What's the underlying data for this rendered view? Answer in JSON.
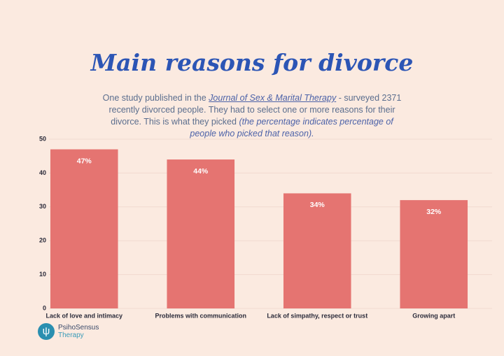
{
  "chart_data": {
    "type": "bar",
    "title": "Main reasons for divorce",
    "subtitle": [
      "One study published in the",
      "Journal of Sex & Marital Therapy",
      "- surveyed 2371 recently divorced people. They had to select one or more reasons for their divorce. This is what they picked",
      "(the percentage indicates percentage of people who picked that reason)."
    ],
    "categories": [
      "Lack of love and intimacy",
      "Problems with communication",
      "Lack of simpathy, respect or trust",
      "Growing apart"
    ],
    "values": [
      47,
      44,
      34,
      32
    ],
    "value_labels": [
      "47%",
      "44%",
      "34%",
      "32%"
    ],
    "color": "#e57471",
    "ylim": [
      0,
      50
    ],
    "yticks": [
      0,
      10,
      20,
      30,
      40,
      50
    ],
    "grid": true
  },
  "logo": {
    "name": "PsihoSensus",
    "tagline": "Therapy"
  }
}
